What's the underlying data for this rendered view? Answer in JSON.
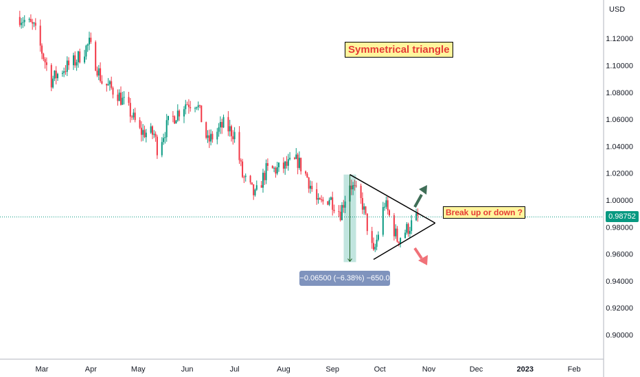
{
  "chart_data": {
    "type": "candlestick",
    "title": "Symmetrical triangle",
    "currency": "USD",
    "ylim": [
      0.88,
      1.14
    ],
    "y_ticks": [
      "1.12000",
      "1.10000",
      "1.08000",
      "1.06000",
      "1.04000",
      "1.02000",
      "1.00000",
      "0.98000",
      "0.96000",
      "0.94000",
      "0.92000",
      "0.90000"
    ],
    "x_ticks": [
      "Mar",
      "Apr",
      "May",
      "Jun",
      "Jul",
      "Aug",
      "Sep",
      "Oct",
      "Nov",
      "Dec",
      "2023",
      "Feb"
    ],
    "last_price": "0.98752",
    "close_path": [
      [
        "2022-02-15",
        1.136
      ],
      [
        "2022-02-24",
        1.128
      ],
      [
        "2022-03-07",
        1.089
      ],
      [
        "2022-03-14",
        1.097
      ],
      [
        "2022-03-22",
        1.103
      ],
      [
        "2022-03-31",
        1.116
      ],
      [
        "2022-04-08",
        1.088
      ],
      [
        "2022-04-18",
        1.079
      ],
      [
        "2022-04-26",
        1.065
      ],
      [
        "2022-05-02",
        1.051
      ],
      [
        "2022-05-11",
        1.049
      ],
      [
        "2022-05-13",
        1.039
      ],
      [
        "2022-05-20",
        1.057
      ],
      [
        "2022-05-31",
        1.072
      ],
      [
        "2022-06-07",
        1.073
      ],
      [
        "2022-06-14",
        1.043
      ],
      [
        "2022-06-24",
        1.056
      ],
      [
        "2022-07-01",
        1.049
      ],
      [
        "2022-07-06",
        1.018
      ],
      [
        "2022-07-14",
        1.003
      ],
      [
        "2022-07-21",
        1.022
      ],
      [
        "2022-07-29",
        1.023
      ],
      [
        "2022-08-10",
        1.029
      ],
      [
        "2022-08-16",
        1.017
      ],
      [
        "2022-08-23",
        0.996
      ],
      [
        "2022-08-30",
        1.002
      ],
      [
        "2022-09-06",
        0.991
      ],
      [
        "2022-09-12",
        1.013
      ],
      [
        "2022-09-20",
        0.997
      ],
      [
        "2022-09-27",
        0.959
      ],
      [
        "2022-10-04",
        0.998
      ],
      [
        "2022-10-12",
        0.971
      ],
      [
        "2022-10-17",
        0.977
      ],
      [
        "2022-10-25",
        0.987
      ]
    ],
    "measure": {
      "label": "−0.06500 (−6.38%) −650.0",
      "from": [
        "2022-09-12",
        1.019
      ],
      "to": [
        "2022-09-12",
        0.954
      ]
    },
    "triangle": {
      "top_line": [
        [
          "2022-09-12",
          1.019
        ],
        [
          "2022-11-05",
          0.983
        ]
      ],
      "bottom_line": [
        [
          "2022-09-27",
          0.956
        ],
        [
          "2022-11-05",
          0.983
        ]
      ]
    },
    "annotations": [
      {
        "text": "Symmetrical triangle"
      },
      {
        "text": "Break up or down ?"
      }
    ],
    "up_color": "#089981",
    "down_color": "#f23645"
  }
}
